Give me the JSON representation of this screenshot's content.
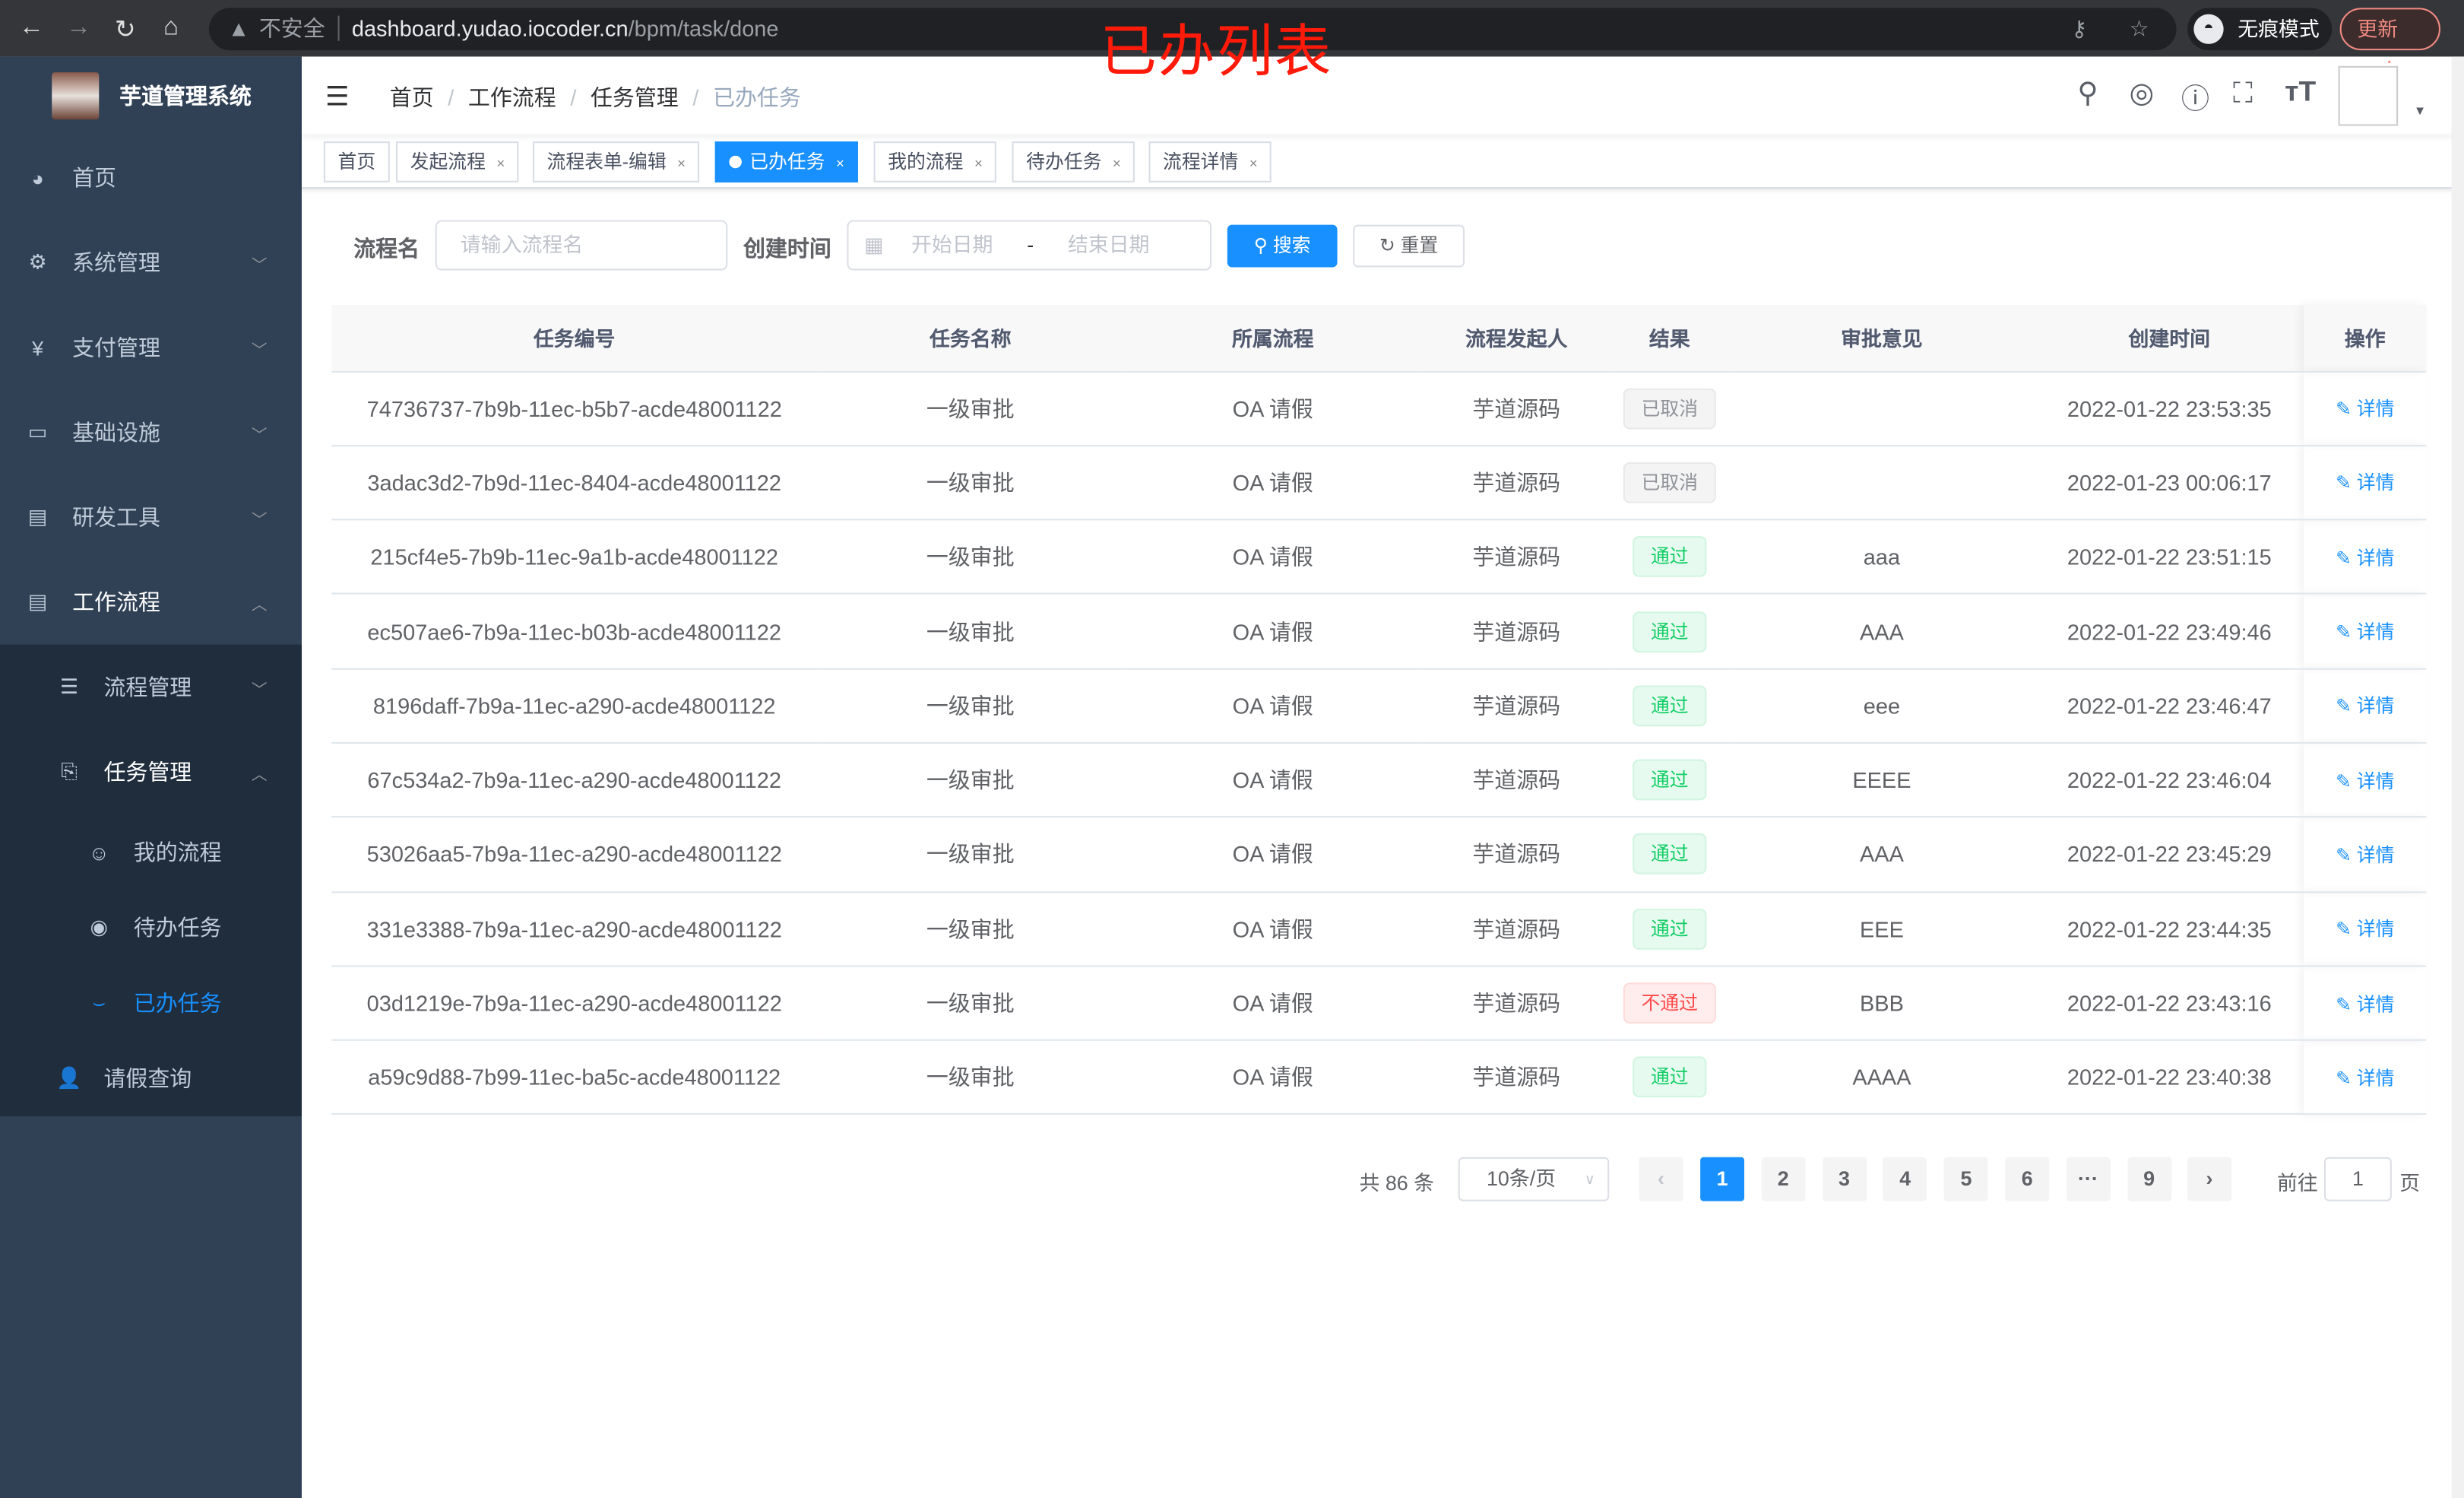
{
  "browser": {
    "url_host": "dashboard.yudao.iocoder.cn",
    "url_path": "/bpm/task/done",
    "insecure_label": "不安全",
    "incognito_label": "无痕模式",
    "update_label": "更新"
  },
  "annotation": "已办列表",
  "app": {
    "title": "芋道管理系统"
  },
  "sidebar": {
    "items": [
      {
        "label": "首页",
        "icon": "dashboard-icon"
      },
      {
        "label": "系统管理",
        "icon": "gear-icon"
      },
      {
        "label": "支付管理",
        "icon": "yen-icon"
      },
      {
        "label": "基础设施",
        "icon": "monitor-icon"
      },
      {
        "label": "研发工具",
        "icon": "toolbox-icon"
      },
      {
        "label": "工作流程",
        "icon": "toolbox-icon"
      }
    ],
    "sub": {
      "process_mgmt": "流程管理",
      "task_mgmt": "任务管理",
      "my_process": "我的流程",
      "todo": "待办任务",
      "done": "已办任务",
      "leave": "请假查询"
    }
  },
  "breadcrumb": [
    "首页",
    "工作流程",
    "任务管理",
    "已办任务"
  ],
  "tags": [
    {
      "label": "首页"
    },
    {
      "label": "发起流程"
    },
    {
      "label": "流程表单-编辑"
    },
    {
      "label": "已办任务",
      "active": true
    },
    {
      "label": "我的流程"
    },
    {
      "label": "待办任务"
    },
    {
      "label": "流程详情"
    }
  ],
  "search": {
    "name_label": "流程名",
    "name_placeholder": "请输入流程名",
    "time_label": "创建时间",
    "start_placeholder": "开始日期",
    "sep": "-",
    "end_placeholder": "结束日期",
    "search_btn": "搜索",
    "reset_btn": "重置"
  },
  "table": {
    "columns": [
      "任务编号",
      "任务名称",
      "所属流程",
      "流程发起人",
      "结果",
      "审批意见",
      "创建时间",
      "操作"
    ],
    "action_label": "详情",
    "rows": [
      {
        "id": "74736737-7b9b-11ec-b5b7-acde48001122",
        "name": "一级审批",
        "process": "OA 请假",
        "starter": "芋道源码",
        "result": "已取消",
        "result_type": "cancel",
        "comment": "",
        "time": "2022-01-22 23:53:35"
      },
      {
        "id": "3adac3d2-7b9d-11ec-8404-acde48001122",
        "name": "一级审批",
        "process": "OA 请假",
        "starter": "芋道源码",
        "result": "已取消",
        "result_type": "cancel",
        "comment": "",
        "time": "2022-01-23 00:06:17"
      },
      {
        "id": "215cf4e5-7b9b-11ec-9a1b-acde48001122",
        "name": "一级审批",
        "process": "OA 请假",
        "starter": "芋道源码",
        "result": "通过",
        "result_type": "pass",
        "comment": "aaa",
        "time": "2022-01-22 23:51:15"
      },
      {
        "id": "ec507ae6-7b9a-11ec-b03b-acde48001122",
        "name": "一级审批",
        "process": "OA 请假",
        "starter": "芋道源码",
        "result": "通过",
        "result_type": "pass",
        "comment": "AAA",
        "time": "2022-01-22 23:49:46"
      },
      {
        "id": "8196daff-7b9a-11ec-a290-acde48001122",
        "name": "一级审批",
        "process": "OA 请假",
        "starter": "芋道源码",
        "result": "通过",
        "result_type": "pass",
        "comment": "eee",
        "time": "2022-01-22 23:46:47"
      },
      {
        "id": "67c534a2-7b9a-11ec-a290-acde48001122",
        "name": "一级审批",
        "process": "OA 请假",
        "starter": "芋道源码",
        "result": "通过",
        "result_type": "pass",
        "comment": "EEEE",
        "time": "2022-01-22 23:46:04"
      },
      {
        "id": "53026aa5-7b9a-11ec-a290-acde48001122",
        "name": "一级审批",
        "process": "OA 请假",
        "starter": "芋道源码",
        "result": "通过",
        "result_type": "pass",
        "comment": "AAA",
        "time": "2022-01-22 23:45:29"
      },
      {
        "id": "331e3388-7b9a-11ec-a290-acde48001122",
        "name": "一级审批",
        "process": "OA 请假",
        "starter": "芋道源码",
        "result": "通过",
        "result_type": "pass",
        "comment": "EEE",
        "time": "2022-01-22 23:44:35"
      },
      {
        "id": "03d1219e-7b9a-11ec-a290-acde48001122",
        "name": "一级审批",
        "process": "OA 请假",
        "starter": "芋道源码",
        "result": "不通过",
        "result_type": "fail",
        "comment": "BBB",
        "time": "2022-01-22 23:43:16"
      },
      {
        "id": "a59c9d88-7b99-11ec-ba5c-acde48001122",
        "name": "一级审批",
        "process": "OA 请假",
        "starter": "芋道源码",
        "result": "通过",
        "result_type": "pass",
        "comment": "AAAA",
        "time": "2022-01-22 23:40:38"
      }
    ]
  },
  "pagination": {
    "total_text": "共 86 条",
    "page_size": "10条/页",
    "pages": [
      "1",
      "2",
      "3",
      "4",
      "5",
      "6",
      "···",
      "9"
    ],
    "current": "1",
    "goto_label": "前往",
    "goto_value": "1",
    "page_suffix": "页"
  },
  "colors": {
    "primary": "#1890ff",
    "sidebar": "#304156",
    "submenu": "#1f2d3d",
    "annotation": "#ff1a0a"
  }
}
